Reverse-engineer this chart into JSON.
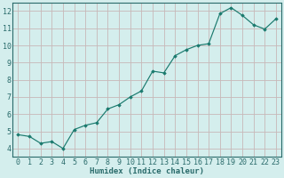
{
  "x": [
    0,
    1,
    2,
    3,
    4,
    5,
    6,
    7,
    8,
    9,
    10,
    11,
    12,
    13,
    14,
    15,
    16,
    17,
    18,
    19,
    20,
    21,
    22,
    23
  ],
  "y": [
    4.8,
    4.7,
    4.3,
    4.4,
    4.0,
    5.1,
    5.35,
    5.5,
    6.3,
    6.55,
    7.0,
    7.35,
    8.5,
    8.4,
    9.4,
    9.75,
    10.0,
    10.1,
    11.85,
    12.2,
    11.75,
    11.2,
    10.95,
    11.55
  ],
  "line_color": "#1a7a6e",
  "marker_color": "#1a7a6e",
  "bg_color": "#d4eeed",
  "grid_color": "#c8b8b8",
  "axis_color": "#2a6b6b",
  "xlabel": "Humidex (Indice chaleur)",
  "xlim": [
    -0.5,
    23.5
  ],
  "ylim": [
    3.5,
    12.5
  ],
  "yticks": [
    4,
    5,
    6,
    7,
    8,
    9,
    10,
    11,
    12
  ],
  "xticks": [
    0,
    1,
    2,
    3,
    4,
    5,
    6,
    7,
    8,
    9,
    10,
    11,
    12,
    13,
    14,
    15,
    16,
    17,
    18,
    19,
    20,
    21,
    22,
    23
  ],
  "label_fontsize": 6.5,
  "tick_fontsize": 6.0
}
